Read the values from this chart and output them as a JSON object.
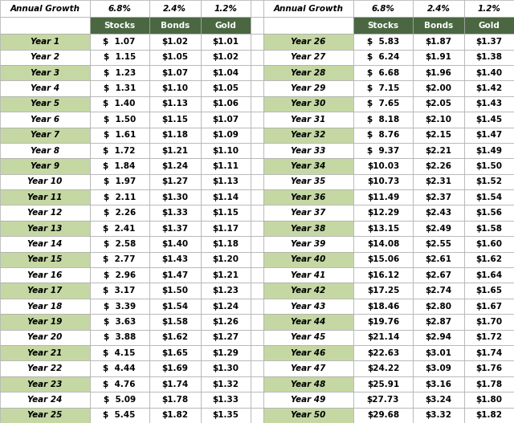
{
  "col_header_bg": "#4a6741",
  "col_header_fg": "#ffffff",
  "row_bg_odd": "#c5d8a4",
  "row_bg_even": "#ffffff",
  "border_color": "#aaaaaa",
  "years": [
    1,
    2,
    3,
    4,
    5,
    6,
    7,
    8,
    9,
    10,
    11,
    12,
    13,
    14,
    15,
    16,
    17,
    18,
    19,
    20,
    21,
    22,
    23,
    24,
    25,
    26,
    27,
    28,
    29,
    30,
    31,
    32,
    33,
    34,
    35,
    36,
    37,
    38,
    39,
    40,
    41,
    42,
    43,
    44,
    45,
    46,
    47,
    48,
    49,
    50
  ],
  "stocks": [
    1.07,
    1.15,
    1.23,
    1.31,
    1.4,
    1.5,
    1.61,
    1.72,
    1.84,
    1.97,
    2.11,
    2.26,
    2.41,
    2.58,
    2.77,
    2.96,
    3.17,
    3.39,
    3.63,
    3.88,
    4.15,
    4.44,
    4.76,
    5.09,
    5.45,
    5.83,
    6.24,
    6.68,
    7.15,
    7.65,
    8.18,
    8.76,
    9.37,
    10.03,
    10.73,
    11.49,
    12.29,
    13.15,
    14.08,
    15.06,
    16.12,
    17.25,
    18.46,
    19.76,
    21.14,
    22.63,
    24.22,
    25.91,
    27.73,
    29.68
  ],
  "bonds": [
    1.02,
    1.05,
    1.07,
    1.1,
    1.13,
    1.15,
    1.18,
    1.21,
    1.24,
    1.27,
    1.3,
    1.33,
    1.37,
    1.4,
    1.43,
    1.47,
    1.5,
    1.54,
    1.58,
    1.62,
    1.65,
    1.69,
    1.74,
    1.78,
    1.82,
    1.87,
    1.91,
    1.96,
    2.0,
    2.05,
    2.1,
    2.15,
    2.21,
    2.26,
    2.31,
    2.37,
    2.43,
    2.49,
    2.55,
    2.61,
    2.67,
    2.74,
    2.8,
    2.87,
    2.94,
    3.01,
    3.09,
    3.16,
    3.24,
    3.32
  ],
  "gold": [
    1.01,
    1.02,
    1.04,
    1.05,
    1.06,
    1.07,
    1.09,
    1.1,
    1.11,
    1.13,
    1.14,
    1.15,
    1.17,
    1.18,
    1.2,
    1.21,
    1.23,
    1.24,
    1.26,
    1.27,
    1.29,
    1.3,
    1.32,
    1.33,
    1.35,
    1.37,
    1.38,
    1.4,
    1.42,
    1.43,
    1.45,
    1.47,
    1.49,
    1.5,
    1.52,
    1.54,
    1.56,
    1.58,
    1.6,
    1.62,
    1.64,
    1.65,
    1.67,
    1.7,
    1.72,
    1.74,
    1.76,
    1.78,
    1.8,
    1.82
  ]
}
